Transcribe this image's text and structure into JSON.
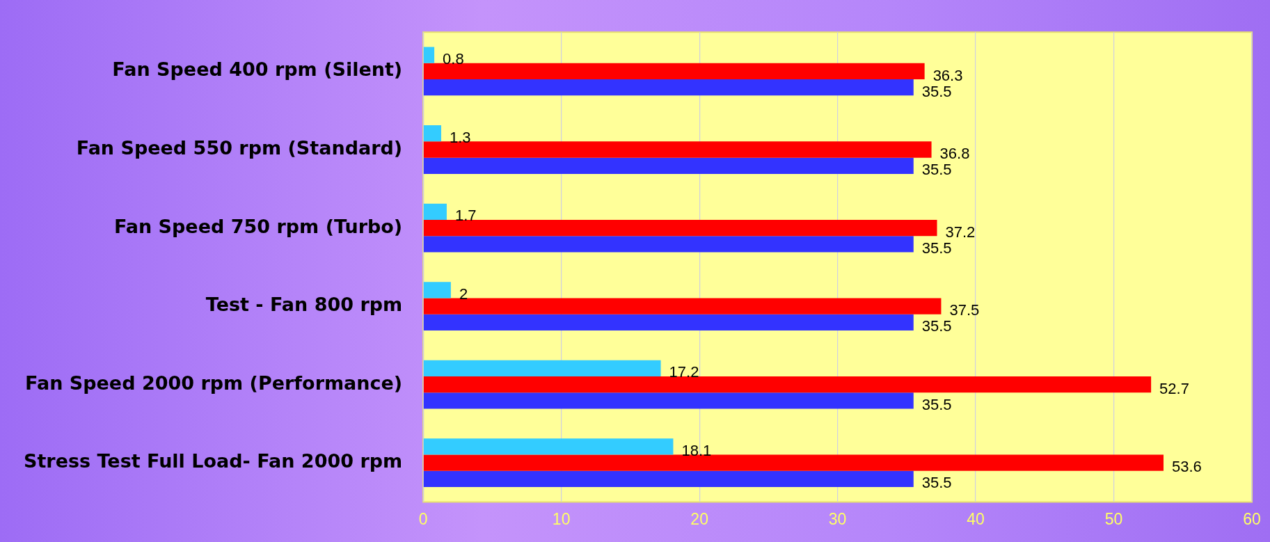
{
  "chart_data": {
    "type": "bar",
    "orientation": "horizontal",
    "categories": [
      "Fan Speed 400 rpm (Silent)",
      "Fan Speed 550 rpm (Standard)",
      "Fan Speed 750 rpm (Turbo)",
      "Test - Fan 800 rpm",
      "Fan Speed 2000 rpm (Performance)",
      "Stress Test Full Load- Fan 2000 rpm"
    ],
    "series": [
      {
        "color": "#33ccff",
        "values": [
          0.8,
          1.3,
          1.7,
          2,
          17.2,
          18.1
        ]
      },
      {
        "color": "#ff0000",
        "values": [
          36.3,
          36.8,
          37.2,
          37.5,
          52.7,
          53.6
        ]
      },
      {
        "color": "#3333ff",
        "values": [
          35.5,
          35.5,
          35.5,
          35.5,
          35.5,
          35.5
        ]
      }
    ],
    "xlim": [
      0,
      60
    ],
    "xticks": [
      0,
      10,
      20,
      30,
      40,
      50,
      60
    ],
    "grid": "x",
    "data_labels": true,
    "legend": false
  }
}
